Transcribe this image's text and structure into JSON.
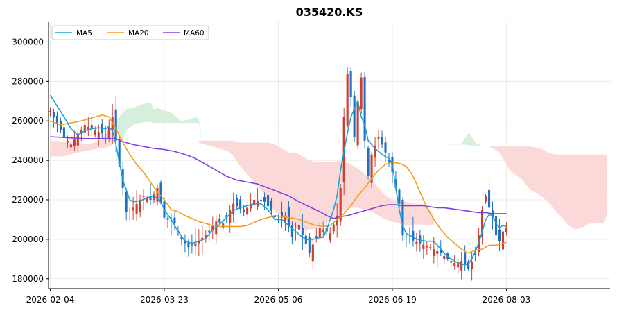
{
  "chart_data": {
    "type": "candlestick",
    "title": "035420.KS",
    "xlabel": "",
    "ylabel": "",
    "ylim": [
      175000,
      310000
    ],
    "grid": true,
    "legend_position": "top-left",
    "x_ticks": [
      {
        "label": "2026-02-04",
        "index": 0
      },
      {
        "label": "2026-03-23",
        "index": 33
      },
      {
        "label": "2026-05-06",
        "index": 66
      },
      {
        "label": "2026-06-19",
        "index": 99
      },
      {
        "label": "2026-08-03",
        "index": 132
      }
    ],
    "y_ticks": [
      180000,
      200000,
      220000,
      240000,
      260000,
      280000,
      300000
    ],
    "x_range": [
      -0.5,
      162
    ],
    "colors": {
      "up": "#cc3e30",
      "down": "#1f6fc4",
      "ma5": "#17a2d6",
      "ma20": "#f29d18",
      "ma60": "#7f3fe0",
      "cloud_bull": "#d6efdc",
      "cloud_bear": "#fbd9d9",
      "grid": "#e6e6e6"
    },
    "legend": [
      {
        "label": "MA5",
        "key": "ma5"
      },
      {
        "label": "MA20",
        "key": "ma20"
      },
      {
        "label": "MA60",
        "key": "ma60"
      }
    ],
    "price_anchors": [
      [
        0,
        265000
      ],
      [
        4,
        252000
      ],
      [
        6,
        248000
      ],
      [
        10,
        258000
      ],
      [
        13,
        255000
      ],
      [
        16,
        253000
      ],
      [
        18,
        262000
      ],
      [
        19,
        250000
      ],
      [
        21,
        226000
      ],
      [
        22,
        214000
      ],
      [
        24,
        216000
      ],
      [
        27,
        222000
      ],
      [
        29,
        220000
      ],
      [
        31,
        226000
      ],
      [
        33,
        211000
      ],
      [
        36,
        208000
      ],
      [
        38,
        200000
      ],
      [
        40,
        196000
      ],
      [
        42,
        198000
      ],
      [
        45,
        202000
      ],
      [
        48,
        209000
      ],
      [
        50,
        208000
      ],
      [
        53,
        218000
      ],
      [
        56,
        214000
      ],
      [
        59,
        220000
      ],
      [
        62,
        219000
      ],
      [
        66,
        210000
      ],
      [
        68,
        212000
      ],
      [
        70,
        201000
      ],
      [
        72,
        207000
      ],
      [
        75,
        193000
      ],
      [
        78,
        206000
      ],
      [
        81,
        203000
      ],
      [
        83,
        212000
      ],
      [
        84,
        226000
      ],
      [
        85,
        262000
      ],
      [
        86,
        284000
      ],
      [
        87,
        272000
      ],
      [
        88,
        252000
      ],
      [
        89,
        270000
      ],
      [
        90,
        282000
      ],
      [
        91,
        250000
      ],
      [
        92,
        232000
      ],
      [
        93,
        243000
      ],
      [
        95,
        252000
      ],
      [
        97,
        244000
      ],
      [
        99,
        234000
      ],
      [
        101,
        218000
      ],
      [
        102,
        202000
      ],
      [
        104,
        200000
      ],
      [
        107,
        198000
      ],
      [
        110,
        196000
      ],
      [
        113,
        193000
      ],
      [
        115,
        190000
      ],
      [
        117,
        188000
      ],
      [
        119,
        189000
      ],
      [
        121,
        185000
      ],
      [
        123,
        192000
      ],
      [
        124,
        202000
      ],
      [
        125,
        215000
      ],
      [
        126,
        222000
      ],
      [
        127,
        216000
      ],
      [
        128,
        211000
      ],
      [
        129,
        202000
      ],
      [
        130,
        199000
      ],
      [
        131,
        204000
      ],
      [
        132,
        206000
      ]
    ],
    "ma5": [
      [
        0,
        273000
      ],
      [
        4,
        262000
      ],
      [
        6,
        256000
      ],
      [
        8,
        253000
      ],
      [
        10,
        255000
      ],
      [
        12,
        256000
      ],
      [
        14,
        256500
      ],
      [
        16,
        256000
      ],
      [
        17,
        257000
      ],
      [
        18,
        255000
      ],
      [
        19,
        248000
      ],
      [
        20,
        239000
      ],
      [
        21,
        230000
      ],
      [
        23,
        220000
      ],
      [
        24,
        219000
      ],
      [
        26,
        219500
      ],
      [
        28,
        221000
      ],
      [
        30,
        222000
      ],
      [
        32,
        219000
      ],
      [
        33,
        215000
      ],
      [
        35,
        210000
      ],
      [
        37,
        204000
      ],
      [
        39,
        199000
      ],
      [
        41,
        198000
      ],
      [
        43,
        199000
      ],
      [
        45,
        200500
      ],
      [
        47,
        205000
      ],
      [
        49,
        207500
      ],
      [
        51,
        211000
      ],
      [
        53,
        214500
      ],
      [
        55,
        216000
      ],
      [
        57,
        217000
      ],
      [
        59,
        218000
      ],
      [
        61,
        218000
      ],
      [
        63,
        215000
      ],
      [
        65,
        210000
      ],
      [
        67,
        210000
      ],
      [
        69,
        207000
      ],
      [
        71,
        204000
      ],
      [
        73,
        201000
      ],
      [
        75,
        199500
      ],
      [
        77,
        200500
      ],
      [
        79,
        201000
      ],
      [
        80,
        205000
      ],
      [
        82,
        215000
      ],
      [
        83,
        222000
      ],
      [
        84,
        235000
      ],
      [
        86,
        254000
      ],
      [
        87,
        262000
      ],
      [
        88,
        266000
      ],
      [
        89,
        270000
      ],
      [
        90,
        262000
      ],
      [
        91,
        258000
      ],
      [
        92,
        250000
      ],
      [
        94,
        246000
      ],
      [
        96,
        243000
      ],
      [
        97,
        242000
      ],
      [
        98,
        241000
      ],
      [
        99,
        238000
      ],
      [
        100,
        226000
      ],
      [
        101,
        215000
      ],
      [
        102,
        207000
      ],
      [
        103,
        203000
      ],
      [
        105,
        201000
      ],
      [
        107,
        199500
      ],
      [
        109,
        199000
      ],
      [
        111,
        199000
      ],
      [
        113,
        195000
      ],
      [
        115,
        191000
      ],
      [
        117,
        189000
      ],
      [
        118,
        188000
      ],
      [
        120,
        187000
      ],
      [
        121,
        187500
      ],
      [
        122,
        190000
      ],
      [
        123,
        194000
      ],
      [
        124,
        198000
      ],
      [
        125,
        204000
      ],
      [
        126,
        210000
      ],
      [
        127,
        212500
      ],
      [
        128,
        212000
      ],
      [
        129,
        208000
      ],
      [
        130,
        206000
      ],
      [
        131,
        207000
      ],
      [
        132,
        206500
      ]
    ],
    "ma20": [
      [
        0,
        260000
      ],
      [
        3,
        258000
      ],
      [
        6,
        259000
      ],
      [
        9,
        260000
      ],
      [
        12,
        261500
      ],
      [
        15,
        263000
      ],
      [
        17,
        262000
      ],
      [
        19,
        256000
      ],
      [
        21,
        249000
      ],
      [
        23,
        243000
      ],
      [
        25,
        238000
      ],
      [
        27,
        234000
      ],
      [
        29,
        229000
      ],
      [
        31,
        224000
      ],
      [
        33,
        220000
      ],
      [
        35,
        215000
      ],
      [
        37,
        214000
      ],
      [
        39,
        212000
      ],
      [
        41,
        210500
      ],
      [
        43,
        209000
      ],
      [
        45,
        208000
      ],
      [
        47,
        207000
      ],
      [
        49,
        206500
      ],
      [
        51,
        206500
      ],
      [
        53,
        206500
      ],
      [
        55,
        206500
      ],
      [
        57,
        207000
      ],
      [
        59,
        208500
      ],
      [
        61,
        210000
      ],
      [
        63,
        211000
      ],
      [
        65,
        212000
      ],
      [
        67,
        211500
      ],
      [
        69,
        211000
      ],
      [
        71,
        210500
      ],
      [
        73,
        209500
      ],
      [
        75,
        208000
      ],
      [
        77,
        207000
      ],
      [
        79,
        206500
      ],
      [
        81,
        207000
      ],
      [
        83,
        210000
      ],
      [
        85,
        213000
      ],
      [
        87,
        217000
      ],
      [
        89,
        222000
      ],
      [
        91,
        226000
      ],
      [
        93,
        231000
      ],
      [
        95,
        235000
      ],
      [
        97,
        238000
      ],
      [
        99,
        239000
      ],
      [
        101,
        238500
      ],
      [
        103,
        237000
      ],
      [
        105,
        232000
      ],
      [
        107,
        224000
      ],
      [
        109,
        216000
      ],
      [
        111,
        210000
      ],
      [
        113,
        205000
      ],
      [
        115,
        201000
      ],
      [
        117,
        198000
      ],
      [
        119,
        195000
      ],
      [
        121,
        193000
      ],
      [
        123,
        194500
      ],
      [
        125,
        195000
      ],
      [
        127,
        197000
      ],
      [
        129,
        197000
      ],
      [
        131,
        198000
      ],
      [
        132,
        198500
      ]
    ],
    "ma60": [
      [
        0,
        252000
      ],
      [
        5,
        251500
      ],
      [
        10,
        251000
      ],
      [
        15,
        251000
      ],
      [
        19,
        251000
      ],
      [
        21,
        249500
      ],
      [
        24,
        248000
      ],
      [
        27,
        247000
      ],
      [
        30,
        246000
      ],
      [
        33,
        245500
      ],
      [
        36,
        244500
      ],
      [
        39,
        243000
      ],
      [
        42,
        241000
      ],
      [
        45,
        238000
      ],
      [
        48,
        235000
      ],
      [
        51,
        232000
      ],
      [
        54,
        230000
      ],
      [
        57,
        229000
      ],
      [
        60,
        228000
      ],
      [
        63,
        226000
      ],
      [
        66,
        224000
      ],
      [
        69,
        222000
      ],
      [
        72,
        219000
      ],
      [
        75,
        216500
      ],
      [
        78,
        214000
      ],
      [
        80,
        212000
      ],
      [
        82,
        210500
      ],
      [
        84,
        211500
      ],
      [
        86,
        212000
      ],
      [
        88,
        213000
      ],
      [
        90,
        214000
      ],
      [
        92,
        215000
      ],
      [
        94,
        216000
      ],
      [
        96,
        217000
      ],
      [
        98,
        217500
      ],
      [
        100,
        217500
      ],
      [
        102,
        217000
      ],
      [
        104,
        217000
      ],
      [
        106,
        217000
      ],
      [
        108,
        217000
      ],
      [
        110,
        216500
      ],
      [
        112,
        216000
      ],
      [
        114,
        216000
      ],
      [
        116,
        215500
      ],
      [
        118,
        215000
      ],
      [
        120,
        214500
      ],
      [
        122,
        214000
      ],
      [
        124,
        213500
      ],
      [
        126,
        213500
      ],
      [
        128,
        213000
      ],
      [
        130,
        213000
      ],
      [
        132,
        213000
      ]
    ],
    "ichimoku_cloud": [
      {
        "trend": "bear",
        "x": [
          0,
          4,
          8,
          11,
          14,
          16,
          18,
          19,
          20
        ],
        "upper": [
          250000,
          249500,
          249000,
          248000,
          250000,
          253000,
          258000,
          260000,
          260000
        ],
        "lower": [
          242000,
          242000,
          244000,
          245000,
          246000,
          246000,
          248000,
          252000,
          257000
        ]
      },
      {
        "trend": "bull",
        "x": [
          19,
          20,
          21,
          22,
          24,
          26,
          28,
          29,
          30,
          31,
          33,
          35,
          38,
          40,
          42,
          43,
          44
        ],
        "upper": [
          260000,
          262000,
          264000,
          266000,
          266500,
          268000,
          269000,
          269500,
          266000,
          266500,
          265500,
          264000,
          260000,
          260500,
          262000,
          261000,
          250000
        ],
        "lower": [
          257000,
          253000,
          250000,
          255000,
          258000,
          259000,
          259500,
          259500,
          259000,
          259000,
          259000,
          259000,
          259000,
          259000,
          259000,
          259000,
          249000
        ]
      },
      {
        "trend": "bear",
        "x": [
          43,
          45,
          48,
          50,
          52,
          53,
          55,
          57,
          59,
          61,
          62,
          63,
          65,
          67,
          69,
          71,
          73,
          75,
          77,
          79,
          81,
          83,
          85,
          87,
          89,
          91,
          93,
          95,
          97,
          99,
          101,
          103,
          105,
          107,
          109,
          111
        ],
        "upper": [
          250000,
          250000,
          250000,
          250000,
          250000,
          250000,
          249000,
          249000,
          249000,
          249000,
          249000,
          249000,
          248000,
          246000,
          244000,
          244000,
          242000,
          240000,
          239000,
          239000,
          239000,
          239500,
          240000,
          238000,
          236000,
          233000,
          230000,
          226000,
          222000,
          220000,
          219000,
          219000,
          218000,
          218000,
          217000,
          212000
        ],
        "lower": [
          249000,
          248000,
          246500,
          245500,
          244000,
          242000,
          237000,
          233000,
          229000,
          225000,
          222000,
          219000,
          214000,
          212000,
          208000,
          206000,
          205000,
          205000,
          205500,
          208000,
          210000,
          211000,
          215000,
          216000,
          216000,
          215000,
          214000,
          212000,
          210000,
          209000,
          208000,
          207000,
          207500,
          207500,
          207000,
          207000
        ]
      },
      {
        "trend": "bull",
        "x": [
          114,
          117,
          119,
          120,
          121,
          122,
          123,
          125,
          127
        ],
        "upper": [
          248000,
          248500,
          248500,
          251000,
          254000,
          252000,
          249000,
          247000,
          247000
        ],
        "lower": [
          248000,
          248000,
          248000,
          248000,
          247500,
          247500,
          247500,
          247000,
          247000
        ]
      },
      {
        "trend": "bear",
        "x": [
          127,
          130,
          133,
          136,
          139,
          142,
          144,
          146,
          148,
          150,
          152,
          154,
          156,
          158,
          160,
          161
        ],
        "upper": [
          247000,
          247000,
          247000,
          247000,
          247000,
          246000,
          244000,
          243000,
          243000,
          243000,
          243000,
          243000,
          243000,
          243000,
          243000,
          243000
        ],
        "lower": [
          247000,
          244000,
          235000,
          231000,
          225000,
          222000,
          219000,
          215000,
          211000,
          207000,
          205000,
          206000,
          208000,
          208000,
          208000,
          212000
        ]
      }
    ]
  }
}
